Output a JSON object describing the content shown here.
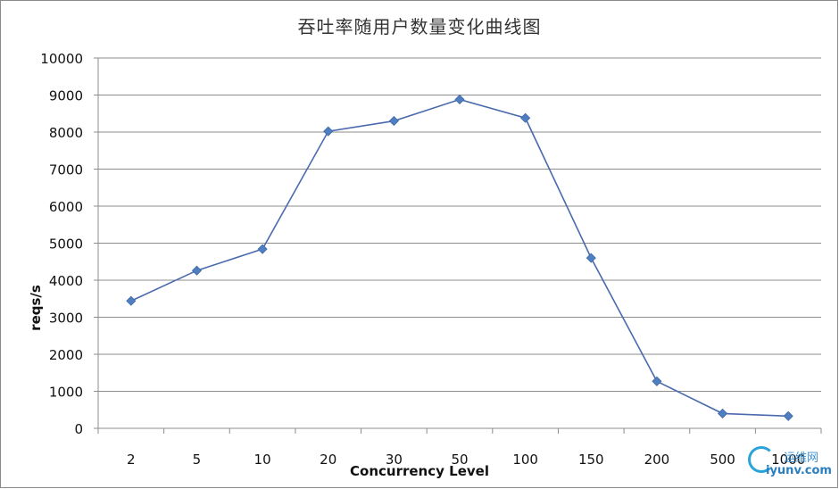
{
  "chart_data": {
    "type": "line",
    "title": "吞吐率随用户数量变化曲线图",
    "xlabel": "Concurrency Level",
    "ylabel": "reqs/s",
    "categories": [
      "2",
      "5",
      "10",
      "20",
      "30",
      "50",
      "100",
      "150",
      "200",
      "500",
      "1000"
    ],
    "series": [
      {
        "values": [
          3440,
          4260,
          4840,
          8020,
          8300,
          8880,
          8380,
          4600,
          1270,
          400,
          330
        ],
        "color": "#4a6aad"
      }
    ],
    "ylim": [
      0,
      10000
    ],
    "yticks": [
      "0",
      "1000",
      "2000",
      "3000",
      "4000",
      "5000",
      "6000",
      "7000",
      "8000",
      "9000",
      "10000"
    ],
    "grid": "horizontal",
    "legend": "none"
  },
  "watermark": {
    "brand": "运维网",
    "site": "iyunv.com"
  }
}
